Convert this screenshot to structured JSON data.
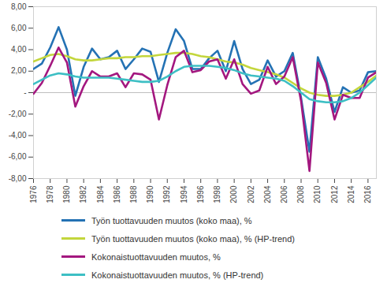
{
  "chart_data": {
    "type": "line",
    "x": [
      1976,
      1977,
      1978,
      1979,
      1980,
      1981,
      1982,
      1983,
      1984,
      1985,
      1986,
      1987,
      1988,
      1989,
      1990,
      1991,
      1992,
      1993,
      1994,
      1995,
      1996,
      1997,
      1998,
      1999,
      2000,
      2001,
      2002,
      2003,
      2004,
      2005,
      2006,
      2007,
      2008,
      2009,
      2010,
      2011,
      2012,
      2013,
      2014,
      2015,
      2016,
      2017
    ],
    "xlim": [
      1976,
      2017
    ],
    "xticks": [
      1976,
      1978,
      1980,
      1982,
      1984,
      1986,
      1988,
      1990,
      1992,
      1994,
      1996,
      1998,
      2000,
      2002,
      2004,
      2006,
      2008,
      2010,
      2012,
      2014,
      2016
    ],
    "ylim": [
      -8,
      8
    ],
    "yticks": [
      {
        "value": -8,
        "label": "-8,00"
      },
      {
        "value": -6,
        "label": "-6,00"
      },
      {
        "value": -4,
        "label": "-4,00"
      },
      {
        "value": -2,
        "label": "-2,00"
      },
      {
        "value": 0,
        "label": "-"
      },
      {
        "value": 2,
        "label": "2,00"
      },
      {
        "value": 4,
        "label": "4,00"
      },
      {
        "value": 6,
        "label": "6,00"
      },
      {
        "value": 8,
        "label": "8,00"
      }
    ],
    "grid": false,
    "legend": "bottom",
    "series": [
      {
        "name": "Työn tuottavuuden muutos (koko maa), %",
        "color": "#2472b4",
        "values": [
          2.2,
          2.7,
          4.2,
          6.1,
          4.0,
          -0.3,
          2.4,
          4.1,
          3.1,
          3.3,
          3.9,
          2.2,
          3.1,
          4.1,
          3.8,
          1.0,
          3.7,
          5.9,
          4.8,
          2.2,
          2.2,
          3.2,
          3.9,
          2.0,
          4.8,
          2.2,
          0.8,
          1.2,
          3.0,
          1.5,
          2.0,
          3.7,
          -0.5,
          -5.5,
          3.3,
          1.3,
          -1.8,
          0.5,
          0.0,
          0.2,
          1.9,
          2.0
        ]
      },
      {
        "name": "Työn tuottavuuden muutos (koko maa), % (HP-trend)",
        "color": "#c3d63c",
        "values": [
          2.9,
          3.2,
          3.5,
          3.6,
          3.4,
          3.1,
          3.0,
          3.0,
          3.1,
          3.2,
          3.2,
          3.3,
          3.3,
          3.4,
          3.4,
          3.5,
          3.6,
          3.7,
          3.7,
          3.6,
          3.4,
          3.3,
          3.1,
          2.9,
          2.8,
          2.6,
          2.3,
          2.1,
          1.9,
          1.7,
          1.4,
          0.9,
          0.4,
          0.0,
          -0.2,
          -0.3,
          -0.3,
          -0.2,
          0.0,
          0.5,
          1.0,
          1.6
        ]
      },
      {
        "name": "Kokonaistuottavuuden muutos, %",
        "color": "#a3177f",
        "values": [
          -0.1,
          0.9,
          2.5,
          4.2,
          2.8,
          -1.3,
          0.6,
          2.0,
          1.5,
          1.5,
          1.8,
          0.5,
          1.8,
          1.7,
          1.2,
          -2.5,
          0.7,
          3.3,
          3.9,
          1.9,
          2.1,
          2.9,
          3.1,
          1.3,
          3.1,
          0.8,
          -0.1,
          0.2,
          2.4,
          0.8,
          1.5,
          3.3,
          -0.8,
          -7.3,
          2.8,
          0.9,
          -2.5,
          -0.2,
          -0.5,
          -0.5,
          1.4,
          1.9
        ]
      },
      {
        "name": "Kokonaistuottavuuden muutos, % (HP-trend)",
        "color": "#3dbfc4",
        "values": [
          0.8,
          1.2,
          1.6,
          1.8,
          1.7,
          1.5,
          1.4,
          1.4,
          1.4,
          1.4,
          1.3,
          1.2,
          1.1,
          1.0,
          1.0,
          1.1,
          1.5,
          2.0,
          2.4,
          2.5,
          2.5,
          2.5,
          2.4,
          2.3,
          2.1,
          1.8,
          1.6,
          1.5,
          1.4,
          1.3,
          1.1,
          0.6,
          0.0,
          -0.6,
          -0.8,
          -0.9,
          -0.9,
          -0.8,
          -0.5,
          0.0,
          0.7,
          1.4
        ]
      }
    ]
  }
}
